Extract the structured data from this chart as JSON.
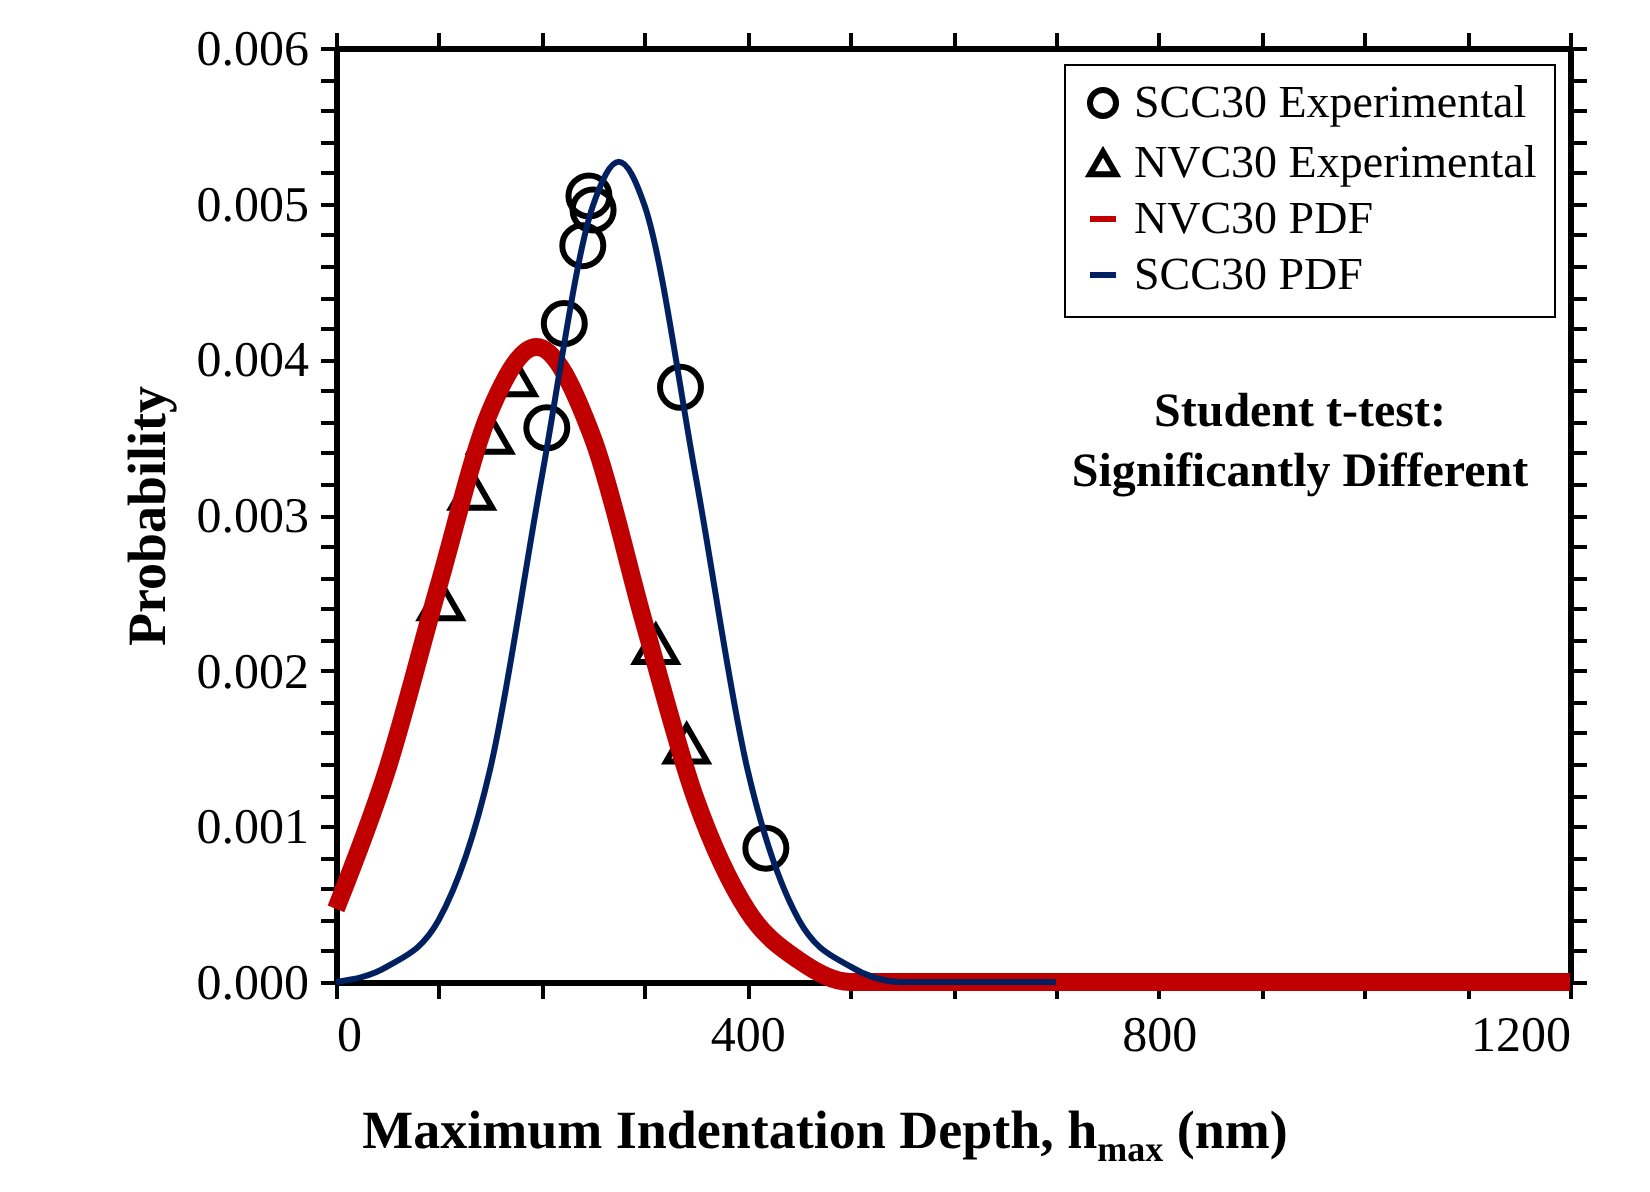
{
  "chart_data": {
    "type": "scatter",
    "xlabel": "Maximum Indentation Depth, h$_{max}$ (nm)",
    "ylabel": "Probability",
    "xlim": [
      0,
      1200
    ],
    "ylim": [
      0,
      0.006
    ],
    "xticks": [
      0,
      {
        "value": 100,
        "label": null
      },
      {
        "value": 200,
        "label": null
      },
      {
        "value": 300,
        "label": null
      },
      400,
      {
        "value": 500,
        "label": null
      },
      {
        "value": 600,
        "label": null
      },
      {
        "value": 700,
        "label": null
      },
      800,
      {
        "value": 900,
        "label": null
      },
      {
        "value": 1000,
        "label": null
      },
      {
        "value": 1100,
        "label": null
      },
      1200
    ],
    "yticks": [
      {
        "value": 0,
        "label": "0.000"
      },
      {
        "value": 0.0002,
        "label": null
      },
      {
        "value": 0.0004,
        "label": null
      },
      {
        "value": 0.0006,
        "label": null
      },
      {
        "value": 0.0008,
        "label": null
      },
      {
        "value": 0.001,
        "label": "0.001"
      },
      {
        "value": 0.0012,
        "label": null
      },
      {
        "value": 0.0014,
        "label": null
      },
      {
        "value": 0.0016,
        "label": null
      },
      {
        "value": 0.0018,
        "label": null
      },
      {
        "value": 0.002,
        "label": "0.002"
      },
      {
        "value": 0.0022,
        "label": null
      },
      {
        "value": 0.0024,
        "label": null
      },
      {
        "value": 0.0026,
        "label": null
      },
      {
        "value": 0.0028,
        "label": null
      },
      {
        "value": 0.003,
        "label": "0.003"
      },
      {
        "value": 0.0032,
        "label": null
      },
      {
        "value": 0.0034,
        "label": null
      },
      {
        "value": 0.0036,
        "label": null
      },
      {
        "value": 0.0038,
        "label": null
      },
      {
        "value": 0.004,
        "label": "0.004"
      },
      {
        "value": 0.0042,
        "label": null
      },
      {
        "value": 0.0044,
        "label": null
      },
      {
        "value": 0.0046,
        "label": null
      },
      {
        "value": 0.0048,
        "label": null
      },
      {
        "value": 0.005,
        "label": "0.005"
      },
      {
        "value": 0.0052,
        "label": null
      },
      {
        "value": 0.0054,
        "label": null
      },
      {
        "value": 0.0056,
        "label": null
      },
      {
        "value": 0.0058,
        "label": null
      },
      {
        "value": 0.006,
        "label": "0.006"
      }
    ],
    "grid": false,
    "legend": "top right",
    "annotations": [
      "Student t-test:\nSignificantly Different"
    ],
    "series": [
      {
        "name": "SCC30 Experimental",
        "marker": "circle",
        "color": "#000000",
        "x": [
          246,
          250,
          240,
          222,
          205,
          335,
          418
        ],
        "values": [
          0.00505,
          0.00496,
          0.00473,
          0.00423,
          0.00356,
          0.00382,
          0.00086
        ]
      },
      {
        "name": "NVC30 Experimental",
        "marker": "triangle",
        "color": "#000000",
        "x": [
          173,
          150,
          132,
          102,
          311,
          341
        ],
        "values": [
          0.00389,
          0.00352,
          0.00316,
          0.00245,
          0.00217,
          0.00153
        ]
      },
      {
        "name": "NVC30 PDF",
        "type": "line",
        "marker": "none",
        "color": "#c00000",
        "x": [
          0,
          50,
          100,
          150,
          195,
          250,
          300,
          350,
          400,
          450,
          500,
          550,
          600,
          800,
          1000,
          1200
        ],
        "values": [
          0.00047,
          0.00137,
          0.00255,
          0.00367,
          0.00408,
          0.00349,
          0.0023,
          0.00117,
          0.00046,
          0.00014,
          0,
          0,
          0,
          0,
          0,
          0
        ]
      },
      {
        "name": "SCC30  PDF",
        "type": "line",
        "marker": "none",
        "color": "#002060",
        "x": [
          0,
          50,
          100,
          150,
          200,
          250,
          275,
          300,
          350,
          400,
          450,
          500,
          550,
          600,
          700
        ],
        "values": [
          0,
          0.0001,
          0.0004,
          0.00137,
          0.00324,
          0.00499,
          0.00527,
          0.00499,
          0.00324,
          0.00137,
          0.0004,
          0.0001,
          0,
          0,
          0
        ]
      }
    ]
  }
}
